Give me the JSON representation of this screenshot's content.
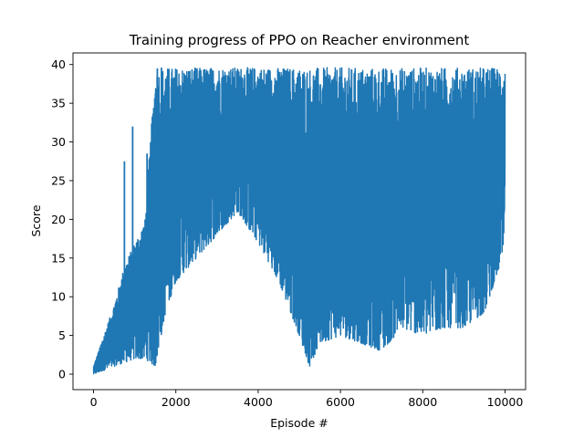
{
  "chart_data": {
    "type": "line",
    "title": "Training progress of PPO on Reacher environment",
    "xlabel": "Episode #",
    "ylabel": "Score",
    "xlim": [
      -500,
      10500
    ],
    "ylim": [
      -2,
      41.5
    ],
    "xticks": [
      0,
      2000,
      4000,
      6000,
      8000,
      10000
    ],
    "yticks": [
      0,
      5,
      10,
      15,
      20,
      25,
      30,
      35,
      40
    ],
    "grid": false,
    "legend": "none",
    "line_color": "#1f77b4",
    "series": [
      {
        "x": [
          0,
          250,
          500,
          750,
          1000,
          1250,
          1500,
          1750,
          2000,
          2500,
          3000,
          3500,
          4000,
          4500,
          5000,
          5250,
          5500,
          6000,
          6500,
          7000,
          7500,
          8000,
          8500,
          9000,
          9500,
          10000
        ],
        "upper": [
          1,
          5,
          9,
          14,
          17,
          20,
          39.5,
          39.6,
          39.6,
          39.6,
          39.6,
          39.6,
          39.6,
          39.6,
          39.6,
          39.6,
          39.6,
          39.6,
          39.6,
          39.6,
          39.6,
          39.6,
          39.6,
          39.6,
          39.6,
          39.6
        ],
        "lower": [
          0,
          0.5,
          1,
          1.5,
          2,
          2,
          1,
          8,
          12,
          15,
          18,
          21,
          17,
          12,
          5,
          1,
          4,
          5,
          4,
          3,
          6,
          5,
          6,
          6,
          8,
          16
        ],
        "spikes": [
          [
            750,
            27.5
          ],
          [
            950,
            32
          ],
          [
            1300,
            28.5
          ],
          [
            1550,
            39.5
          ],
          [
            1650,
            39.6
          ]
        ]
      }
    ]
  }
}
